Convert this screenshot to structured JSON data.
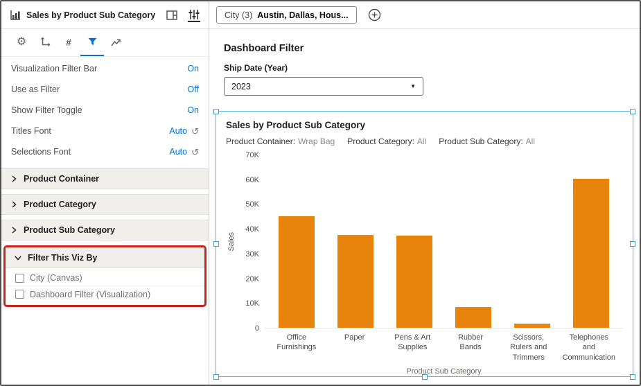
{
  "icons": {
    "gear": "⚙",
    "hash": "#",
    "reset": "↺",
    "caret": "▼"
  },
  "left_panel": {
    "title": "Sales by Product Sub Category",
    "properties": [
      {
        "label": "Visualization Filter Bar",
        "value": "On"
      },
      {
        "label": "Use as Filter",
        "value": "Off"
      },
      {
        "label": "Show Filter Toggle",
        "value": "On"
      },
      {
        "label": "Titles Font",
        "value": "Auto"
      },
      {
        "label": "Selections Font",
        "value": "Auto"
      }
    ],
    "sections": [
      {
        "label": "Product Container"
      },
      {
        "label": "Product Category"
      },
      {
        "label": "Product Sub Category"
      },
      {
        "label": "Filter This Viz By",
        "items": [
          {
            "label": "City (Canvas)"
          },
          {
            "label": "Dashboard Filter (Visualization)"
          }
        ]
      }
    ]
  },
  "topbar": {
    "filter_chip": {
      "label": "City (3)",
      "value": "Austin, Dallas, Hous..."
    }
  },
  "dashboard_filter": {
    "title": "Dashboard Filter",
    "field_label": "Ship Date (Year)",
    "selected_value": "2023"
  },
  "viz": {
    "title": "Sales by Product Sub Category",
    "filter_summary": [
      {
        "label": "Product Container:",
        "value": "Wrap Bag"
      },
      {
        "label": "Product Category:",
        "value": "All"
      },
      {
        "label": "Product Sub Category:",
        "value": "All"
      }
    ]
  },
  "chart_data": {
    "type": "bar",
    "title": "Sales by Product Sub Category",
    "categories": [
      "Office Furnishings",
      "Paper",
      "Pens & Art Supplies",
      "Rubber Bands",
      "Scissors, Rulers and Trimmers",
      "Telephones and Communication"
    ],
    "values": [
      45200,
      37800,
      37300,
      8400,
      1800,
      60400
    ],
    "xlabel": "Product Sub Category",
    "ylabel": "Sales",
    "ylim": [
      0,
      70000
    ],
    "ytick_labels": [
      "70K",
      "60K",
      "50K",
      "40K",
      "30K",
      "20K",
      "10K",
      "0"
    ],
    "bar_color": "#E8830C",
    "grid": false,
    "legend": false
  },
  "colors": {
    "accent_blue": "#0572CE",
    "bar_orange": "#E8830C",
    "selection_teal": "#58B7D6",
    "annotation_red": "#C5251C"
  }
}
